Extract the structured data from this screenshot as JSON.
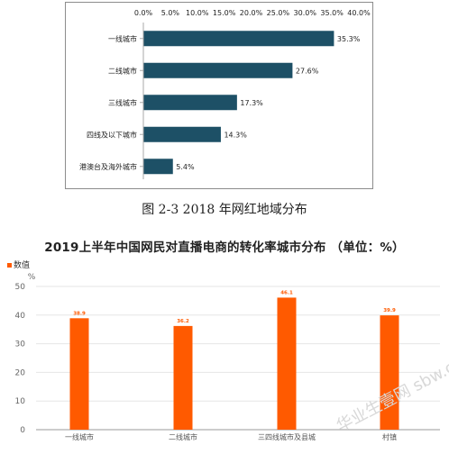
{
  "chart_data": [
    {
      "type": "bar",
      "orientation": "horizontal",
      "categories": [
        "一线城市",
        "二线城市",
        "三线城市",
        "四线及以下城市",
        "港澳台及海外城市"
      ],
      "values": [
        35.3,
        27.6,
        17.3,
        14.3,
        5.4
      ],
      "value_labels": [
        "35.3%",
        "27.6%",
        "17.3%",
        "14.3%",
        "5.4%"
      ],
      "xlim": [
        0,
        40
      ],
      "xticks": [
        "0.0%",
        "5.0%",
        "10.0%",
        "15.0%",
        "20.0%",
        "25.0%",
        "30.0%",
        "35.0%",
        "40.0%"
      ],
      "axis_position": "top",
      "grid": false,
      "bar_color": "#1d5066",
      "caption": "图 2-3 2018 年网红地域分布"
    },
    {
      "type": "bar",
      "title": "2019上半年中国网民对直播电商的转化率城市分布 （单位：%）",
      "legend": [
        "数值"
      ],
      "legend_position": "top-left",
      "ylabel": "%",
      "categories": [
        "一线城市",
        "二线城市",
        "三四线城市及县城",
        "村镇"
      ],
      "values": [
        38.9,
        36.2,
        46.1,
        39.9
      ],
      "value_labels": [
        "38.9",
        "36.2",
        "46.1",
        "39.9"
      ],
      "ylim": [
        0,
        50
      ],
      "yticks": [
        "0",
        "10",
        "20",
        "30",
        "40",
        "50"
      ],
      "grid": true,
      "bar_color": "#ff5a00"
    }
  ],
  "watermark": "华业生壹网 sbw.com"
}
